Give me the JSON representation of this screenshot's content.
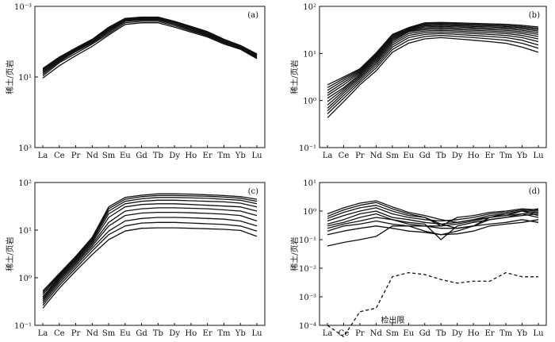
{
  "chart_data": [
    {
      "id": "a",
      "type": "line",
      "panel_label": "(a)",
      "ylabel": "稀土/页岩",
      "y_scale": "log",
      "ylim": [
        0.001,
        1000.0
      ],
      "y_tick_labels": [
        "10⁻³",
        "10¹",
        "10³"
      ],
      "categories": [
        "La",
        "Ce",
        "Pr",
        "Nd",
        "Sm",
        "Eu",
        "Gd",
        "Tb",
        "Dy",
        "Ho",
        "Er",
        "Tm",
        "Yb",
        "Lu"
      ],
      "series": [
        {
          "values": [
            0.9,
            3,
            8,
            20,
            60,
            170,
            200,
            200,
            130,
            80,
            50,
            25,
            15,
            6
          ]
        },
        {
          "values": [
            1.1,
            4,
            10,
            25,
            70,
            200,
            230,
            230,
            150,
            90,
            55,
            28,
            16,
            6.5
          ]
        },
        {
          "values": [
            1.3,
            4.5,
            12,
            28,
            80,
            230,
            260,
            260,
            170,
            100,
            60,
            30,
            17,
            7
          ]
        },
        {
          "values": [
            1.5,
            5,
            13,
            30,
            90,
            250,
            280,
            280,
            180,
            110,
            65,
            32,
            18,
            7.5
          ]
        },
        {
          "values": [
            1.7,
            5.5,
            14,
            33,
            100,
            270,
            300,
            300,
            200,
            120,
            70,
            35,
            19,
            8
          ]
        },
        {
          "values": [
            1.9,
            6,
            15,
            35,
            110,
            290,
            320,
            320,
            210,
            125,
            75,
            36,
            20,
            8.5
          ]
        },
        {
          "values": [
            2.1,
            6.5,
            16,
            37,
            120,
            300,
            340,
            340,
            220,
            130,
            80,
            38,
            21,
            9
          ]
        },
        {
          "values": [
            2.3,
            7,
            17,
            40,
            130,
            310,
            350,
            350,
            230,
            140,
            85,
            40,
            22,
            9.5
          ]
        }
      ]
    },
    {
      "id": "b",
      "type": "line",
      "panel_label": "(b)",
      "ylabel": "稀土/页岩",
      "y_scale": "log",
      "ylim": [
        0.01,
        100
      ],
      "y_tick_labels": [
        "10²",
        "10¹",
        "10⁰",
        "10⁻¹"
      ],
      "categories": [
        "La",
        "Ce",
        "Pr",
        "Nd",
        "Sm",
        "Eu",
        "Gd",
        "Tb",
        "Dy",
        "Ho",
        "Er",
        "Tm",
        "Yb",
        "Lu"
      ],
      "series": [
        {
          "values": [
            0.07,
            0.2,
            0.6,
            1.5,
            5,
            9,
            12,
            13,
            12,
            11,
            10,
            9,
            7,
            5
          ]
        },
        {
          "values": [
            0.09,
            0.25,
            0.7,
            1.8,
            6,
            11,
            14,
            15,
            14,
            13,
            12,
            11,
            9,
            6.5
          ]
        },
        {
          "values": [
            0.11,
            0.3,
            0.8,
            2.1,
            7,
            13,
            16,
            17,
            16,
            15,
            14,
            13,
            11,
            8
          ]
        },
        {
          "values": [
            0.13,
            0.35,
            0.9,
            2.4,
            8,
            15,
            18,
            19,
            18,
            17,
            16,
            15,
            13,
            10
          ]
        },
        {
          "values": [
            0.16,
            0.4,
            1.0,
            2.7,
            9,
            17,
            20,
            21,
            20,
            19,
            18,
            17,
            15,
            12
          ]
        },
        {
          "values": [
            0.2,
            0.45,
            1.1,
            3.0,
            10,
            19,
            22,
            23,
            22,
            21,
            20,
            19,
            17,
            14
          ]
        },
        {
          "values": [
            0.25,
            0.5,
            1.2,
            3.3,
            11,
            20,
            24,
            25,
            24,
            23,
            22,
            21,
            19,
            16
          ]
        },
        {
          "values": [
            0.3,
            0.6,
            1.3,
            3.6,
            12,
            21,
            26,
            27,
            26,
            25,
            24,
            23,
            21,
            18
          ]
        },
        {
          "values": [
            0.35,
            0.7,
            1.4,
            3.9,
            13,
            22,
            28,
            29,
            28,
            27,
            26,
            25,
            23,
            20
          ]
        },
        {
          "values": [
            0.42,
            0.8,
            1.5,
            4.2,
            14,
            23,
            30,
            31,
            30,
            29,
            28,
            27,
            25,
            22
          ]
        },
        {
          "values": [
            0.5,
            0.9,
            1.6,
            4.5,
            15,
            24,
            32,
            33,
            32,
            31,
            30,
            29,
            27,
            24
          ]
        },
        {
          "values": [
            0.6,
            1.0,
            1.7,
            4.8,
            16,
            25,
            34,
            35,
            34,
            33,
            32,
            31,
            29,
            26
          ]
        }
      ]
    },
    {
      "id": "c",
      "type": "line",
      "panel_label": "(c)",
      "ylabel": "稀土/页岩",
      "y_scale": "log",
      "ylim": [
        0.001,
        100
      ],
      "y_tick_labels": [
        "10²",
        "10¹",
        "10⁰",
        "10⁻¹"
      ],
      "categories": [
        "La",
        "Ce",
        "Pr",
        "Nd",
        "Sm",
        "Eu",
        "Gd",
        "Tb",
        "Dy",
        "Ho",
        "Er",
        "Tm",
        "Yb",
        "Lu"
      ],
      "series": [
        {
          "values": [
            0.004,
            0.02,
            0.08,
            0.3,
            1.0,
            2.0,
            2.5,
            2.6,
            2.6,
            2.5,
            2.4,
            2.3,
            2.1,
            1.3
          ]
        },
        {
          "values": [
            0.005,
            0.025,
            0.1,
            0.4,
            1.5,
            3.0,
            3.8,
            4.0,
            4.0,
            3.8,
            3.6,
            3.4,
            3.0,
            2.0
          ]
        },
        {
          "values": [
            0.006,
            0.03,
            0.12,
            0.5,
            2.0,
            4.5,
            5.5,
            6.0,
            6.0,
            5.8,
            5.5,
            5.2,
            4.5,
            3.0
          ]
        },
        {
          "values": [
            0.007,
            0.035,
            0.14,
            0.6,
            3.0,
            7,
            8.5,
            9,
            9,
            8.7,
            8.3,
            7.8,
            7,
            4.5
          ]
        },
        {
          "values": [
            0.008,
            0.04,
            0.16,
            0.7,
            4,
            10,
            12,
            13,
            13,
            12.5,
            12,
            11,
            10,
            7
          ]
        },
        {
          "values": [
            0.009,
            0.045,
            0.18,
            0.8,
            6,
            14,
            17,
            18,
            18,
            17,
            16,
            15,
            14,
            10
          ]
        },
        {
          "values": [
            0.01,
            0.05,
            0.2,
            0.9,
            8,
            18,
            22,
            24,
            24,
            23,
            22,
            21,
            19,
            14
          ]
        },
        {
          "values": [
            0.012,
            0.055,
            0.22,
            1.0,
            10,
            22,
            27,
            30,
            30,
            29,
            28,
            26,
            24,
            18
          ]
        },
        {
          "values": [
            0.014,
            0.06,
            0.24,
            1.1,
            12,
            26,
            32,
            35,
            35,
            34,
            33,
            31,
            28,
            22
          ]
        },
        {
          "values": [
            0.016,
            0.065,
            0.26,
            1.2,
            14,
            30,
            36,
            40,
            40,
            39,
            37,
            35,
            32,
            26
          ]
        }
      ]
    },
    {
      "id": "d",
      "type": "line",
      "panel_label": "(d)",
      "ylabel": "稀土/页岩",
      "y_scale": "log",
      "ylim": [
        0.0001,
        10
      ],
      "y_tick_labels": [
        "10¹",
        "10⁰",
        "10⁻¹",
        "10⁻²",
        "10⁻³",
        "10⁻⁴"
      ],
      "categories": [
        "La",
        "Ce",
        "Pr",
        "Nd",
        "Sm",
        "Eu",
        "Gd",
        "Tb",
        "Dy",
        "Ho",
        "Er",
        "Tm",
        "Yb",
        "Lu"
      ],
      "series": [
        {
          "values": [
            0.06,
            0.08,
            0.1,
            0.13,
            0.3,
            0.3,
            0.2,
            0.15,
            0.2,
            0.3,
            0.5,
            0.6,
            0.7,
            0.8
          ]
        },
        {
          "values": [
            0.15,
            0.2,
            0.25,
            0.3,
            0.25,
            0.2,
            0.18,
            0.15,
            0.16,
            0.2,
            0.3,
            0.35,
            0.4,
            0.5
          ]
        },
        {
          "values": [
            0.2,
            0.3,
            0.35,
            0.45,
            0.35,
            0.3,
            0.3,
            0.25,
            0.25,
            0.3,
            0.35,
            0.4,
            0.5,
            0.4
          ]
        },
        {
          "values": [
            0.25,
            0.35,
            0.45,
            0.6,
            0.5,
            0.4,
            0.35,
            0.1,
            0.3,
            0.4,
            0.5,
            0.6,
            0.8,
            0.6
          ]
        },
        {
          "values": [
            0.3,
            0.4,
            0.6,
            0.8,
            0.5,
            0.35,
            0.3,
            0.3,
            0.35,
            0.45,
            0.6,
            0.7,
            1.0,
            0.7
          ]
        },
        {
          "values": [
            0.35,
            0.5,
            0.8,
            1.0,
            0.6,
            0.5,
            0.4,
            0.35,
            0.4,
            0.5,
            0.7,
            0.8,
            1.0,
            0.9
          ]
        },
        {
          "values": [
            0.45,
            0.7,
            1.0,
            1.3,
            0.8,
            0.6,
            0.5,
            0.45,
            0.5,
            0.6,
            0.8,
            0.9,
            1.1,
            1.0
          ]
        },
        {
          "values": [
            0.55,
            0.9,
            1.3,
            1.6,
            1.0,
            0.7,
            0.6,
            0.3,
            0.6,
            0.7,
            0.9,
            1.0,
            1.2,
            1.1
          ]
        },
        {
          "values": [
            0.65,
            1.1,
            1.6,
            2.0,
            1.2,
            0.8,
            0.6,
            0.35,
            0.25,
            0.3,
            0.6,
            0.8,
            1.0,
            1.2
          ]
        },
        {
          "values": [
            0.8,
            1.3,
            1.9,
            2.3,
            1.4,
            0.9,
            0.7,
            0.5,
            0.4,
            0.5,
            0.6,
            0.7,
            0.8,
            0.9
          ]
        }
      ],
      "detection_limit": {
        "label": "检出限",
        "values": [
          0.0001,
          4e-05,
          0.0003,
          0.0004,
          0.005,
          0.007,
          0.006,
          0.004,
          0.003,
          0.0035,
          0.0035,
          0.007,
          0.005,
          0.005
        ]
      }
    }
  ]
}
